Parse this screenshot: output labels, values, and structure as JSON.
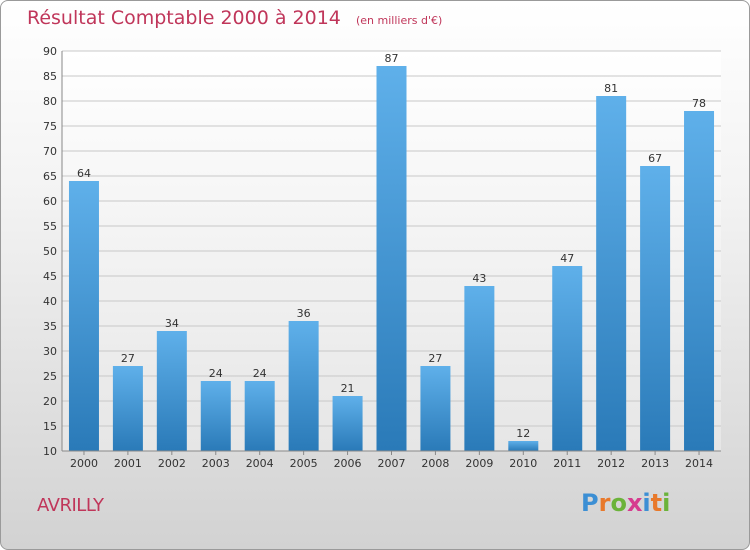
{
  "header": {
    "title": "Résultat Comptable 2000 à 2014",
    "subtitle": "(en milliers d'€)"
  },
  "footer": {
    "city": "AVRILLY",
    "logo_text": "Proxiti"
  },
  "colors": {
    "title": "#c0365a",
    "bar_top": "#5fb0ea",
    "bar_bottom": "#2a7ab8",
    "grid": "#c8c8c8"
  },
  "chart_data": {
    "type": "bar",
    "title": "Résultat Comptable 2000 à 2014",
    "subtitle": "(en milliers d'€)",
    "categories": [
      "2000",
      "2001",
      "2002",
      "2003",
      "2004",
      "2005",
      "2006",
      "2007",
      "2008",
      "2009",
      "2010",
      "2011",
      "2012",
      "2013",
      "2014"
    ],
    "values": [
      64,
      27,
      34,
      24,
      24,
      36,
      21,
      87,
      27,
      43,
      12,
      47,
      81,
      67,
      78
    ],
    "ylim": [
      10,
      90
    ],
    "yticks": [
      10,
      15,
      20,
      25,
      30,
      35,
      40,
      45,
      50,
      55,
      60,
      65,
      70,
      75,
      80,
      85,
      90
    ],
    "grid": true,
    "data_labels": true
  }
}
